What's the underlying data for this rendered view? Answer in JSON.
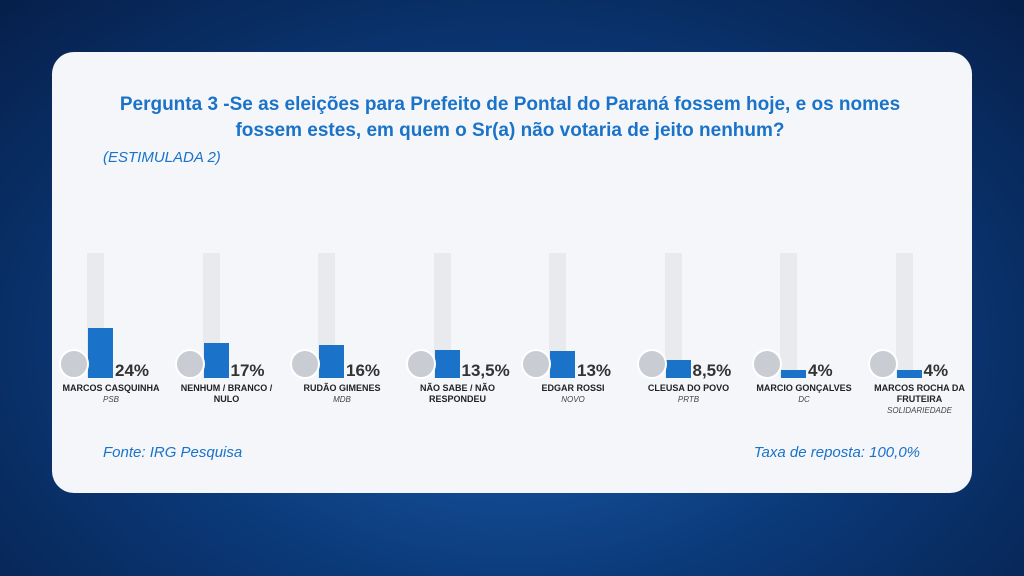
{
  "chart_data": {
    "type": "bar",
    "title": "Pergunta 3 -Se as eleições para Prefeito de Pontal do Paraná fossem hoje, e os nomes fossem estes, em quem o Sr(a) não votaria de jeito nenhum?",
    "subtitle": "(ESTIMULADA 2)",
    "categories": [
      "MARCOS CASQUINHA",
      "NENHUM / BRANCO / NULO",
      "RUDÃO GIMENES",
      "NÃO SABE / NÃO RESPONDEU",
      "EDGAR ROSSI",
      "CLEUSA DO POVO",
      "MARCIO GONÇALVES",
      "MARCOS ROCHA DA FRUTEIRA"
    ],
    "parties": [
      "PSB",
      null,
      "MDB",
      null,
      "NOVO",
      "PRTB",
      "DC",
      "SOLIDARIEDADE"
    ],
    "values": [
      24,
      17,
      16,
      13.5,
      13,
      8.5,
      4,
      4
    ],
    "value_labels": [
      "24%",
      "17%",
      "16%",
      "13,5%",
      "13%",
      "8,5%",
      "4%",
      "4%"
    ],
    "color": "#1a73c8",
    "ylim": [
      0,
      60
    ],
    "source": "Fonte: IRG Pesquisa",
    "response_rate": "Taxa de reposta: 100,0%"
  }
}
